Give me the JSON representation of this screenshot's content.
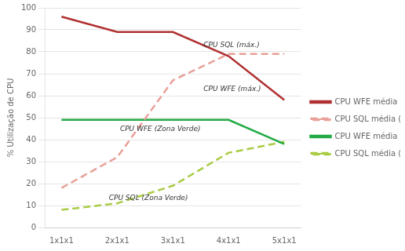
{
  "chart_data": {
    "type": "line",
    "x": [
      1,
      2,
      3,
      4,
      5
    ],
    "xlim": [
      0.7,
      5.3
    ],
    "xticks": [
      {
        "value": 1,
        "label": "1x1x1"
      },
      {
        "value": 2,
        "label": "2x1x1"
      },
      {
        "value": 3,
        "label": "3x1x1"
      },
      {
        "value": 4,
        "label": "4x1x1"
      },
      {
        "value": 5,
        "label": "5x1x1"
      }
    ],
    "ylabel": "% Utilização de CPU",
    "ylim": [
      0,
      100
    ],
    "yticks": [
      0,
      10,
      20,
      30,
      40,
      50,
      60,
      70,
      80,
      90,
      100
    ],
    "grid": "y",
    "legend": "right",
    "series": [
      {
        "name": "CPU WFE média (máx.)",
        "color": "#b03030",
        "line_style": "solid",
        "values": [
          96,
          89,
          89,
          78,
          58
        ]
      },
      {
        "name": "CPU SQL média (máx.)",
        "color": "#e8a098",
        "line_style": "dashed",
        "values": [
          18,
          32,
          67,
          79,
          79
        ]
      },
      {
        "name": "CPU WFE média (Zona Verde)",
        "color": "#22aa44",
        "line_style": "solid",
        "values": [
          49,
          49,
          49,
          49,
          38
        ]
      },
      {
        "name": "CPU SQL média (Zona Verde)",
        "color": "#aacc44",
        "line_style": "dashed",
        "values": [
          8,
          11,
          19,
          34,
          39
        ]
      }
    ],
    "annotations": [
      {
        "text": "CPU SQL (máx.)",
        "x": 3.55,
        "y": 82
      },
      {
        "text": "CPU WFE (máx.)",
        "x": 3.55,
        "y": 62
      },
      {
        "text": "CPU WFE (Zona Verde)",
        "x": 2.05,
        "y": 44
      },
      {
        "text": "CPU SQL (Zona Verde)",
        "x": 1.85,
        "y": 12.5
      }
    ]
  }
}
